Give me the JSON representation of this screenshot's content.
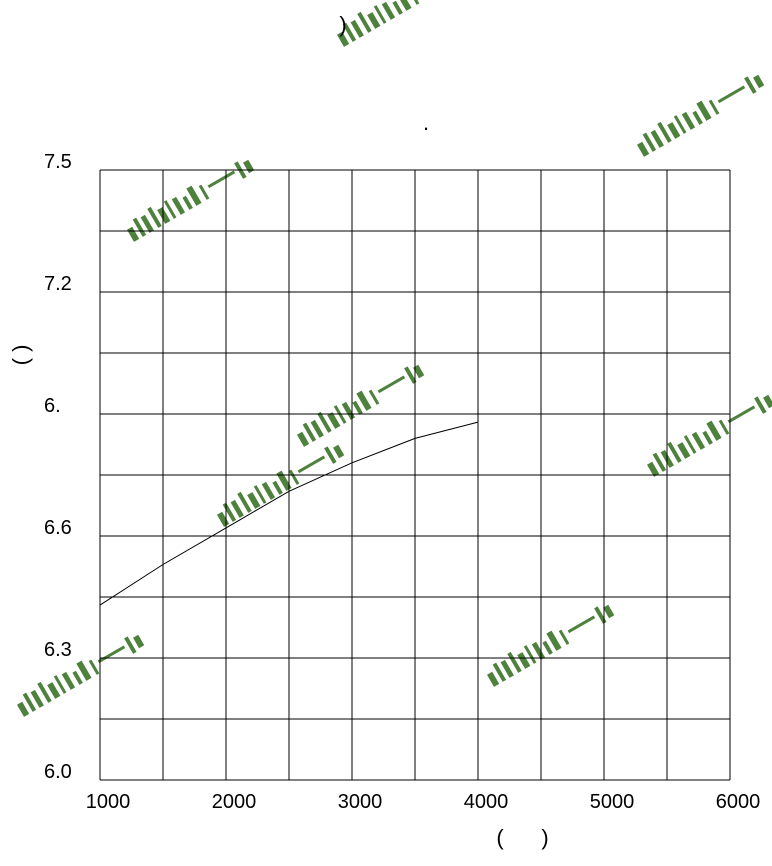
{
  "chart_data": {
    "type": "line",
    "title": "",
    "xlabel": "",
    "ylabel": "",
    "xlim": [
      1000,
      6000
    ],
    "ylim": [
      6.0,
      7.5
    ],
    "grid": true,
    "x_ticks": [
      "1000",
      "2000",
      "3000",
      "4000",
      "5000",
      "6000"
    ],
    "y_ticks": [
      {
        "label": "7.5",
        "value": 7.5
      },
      {
        "label": "7.2",
        "value": 7.2
      },
      {
        "label": "6.",
        "value": 6.9
      },
      {
        "label": "6.6",
        "value": 6.6
      },
      {
        "label": "6.3",
        "value": 6.3
      },
      {
        "label": "6.0",
        "value": 6.0
      }
    ],
    "series": [
      {
        "x": [
          1000,
          1500,
          2000,
          2500,
          3000,
          3500,
          4000
        ],
        "y": [
          6.43,
          6.53,
          6.62,
          6.71,
          6.78,
          6.84,
          6.88
        ]
      }
    ],
    "fragments": {
      "top_paren": ")",
      "dot": ".",
      "ylabel_parens": "( )",
      "xlabel_open": "(",
      "xlabel_close": ")"
    },
    "watermark": "YANSHINYC"
  },
  "colors": {
    "line": "#000000",
    "grid": "#000000",
    "watermark": "#2e6b1a"
  }
}
